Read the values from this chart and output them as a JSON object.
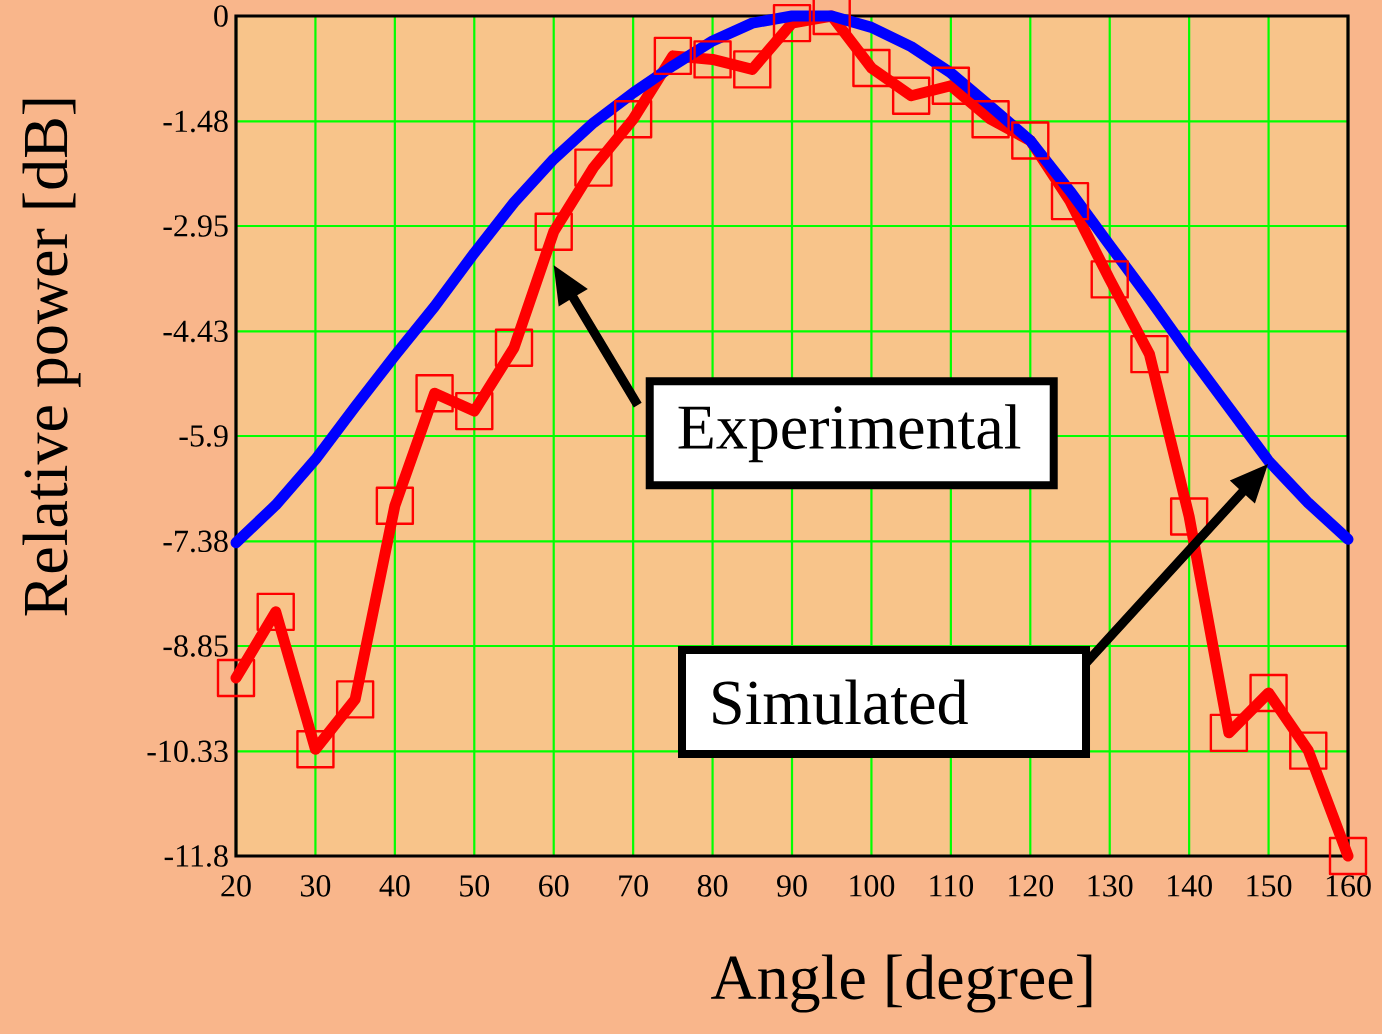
{
  "chart_data": {
    "type": "line",
    "xlabel": "Angle [degree]",
    "ylabel": "Relative power [dB]",
    "xlim": [
      20,
      160
    ],
    "ylim": [
      -11.8,
      0
    ],
    "xticks": [
      20,
      30,
      40,
      50,
      60,
      70,
      80,
      90,
      100,
      110,
      120,
      130,
      140,
      150,
      160
    ],
    "yticks": [
      -11.8,
      -10.33,
      -8.85,
      -7.38,
      -5.9,
      -4.43,
      -2.95,
      -1.48,
      0
    ],
    "grid": true,
    "series": [
      {
        "color": "#ff0000",
        "marker": "square",
        "x": [
          20,
          25,
          30,
          35,
          40,
          45,
          50,
          55,
          60,
          65,
          70,
          75,
          80,
          85,
          90,
          95,
          100,
          105,
          110,
          115,
          120,
          125,
          130,
          135,
          140,
          145,
          150,
          155,
          160
        ],
        "values": [
          -9.3,
          -8.37,
          -10.3,
          -9.6,
          -6.88,
          -5.3,
          -5.55,
          -4.66,
          -3.03,
          -2.13,
          -1.45,
          -0.56,
          -0.61,
          -0.75,
          -0.1,
          0,
          -0.73,
          -1.12,
          -0.98,
          -1.45,
          -1.75,
          -2.6,
          -3.7,
          -4.75,
          -7.03,
          -10.07,
          -9.51,
          -10.32,
          -11.8
        ]
      },
      {
        "color": "#0000ff",
        "marker": "none",
        "x": [
          20,
          25,
          30,
          35,
          40,
          45,
          50,
          55,
          60,
          65,
          70,
          75,
          80,
          85,
          90,
          95,
          100,
          105,
          110,
          115,
          120,
          125,
          130,
          135,
          140,
          145,
          150,
          155,
          160
        ],
        "values": [
          -7.4,
          -6.87,
          -6.23,
          -5.49,
          -4.77,
          -4.08,
          -3.33,
          -2.62,
          -2.01,
          -1.5,
          -1.08,
          -0.7,
          -0.35,
          -0.1,
          0,
          0,
          -0.16,
          -0.43,
          -0.8,
          -1.27,
          -1.75,
          -2.46,
          -3.22,
          -3.97,
          -4.75,
          -5.5,
          -6.25,
          -6.84,
          -7.35
        ]
      }
    ],
    "annotations": [
      {
        "text": "Experimental",
        "x": 60,
        "y": -3.5
      },
      "Simulated"
    ]
  }
}
